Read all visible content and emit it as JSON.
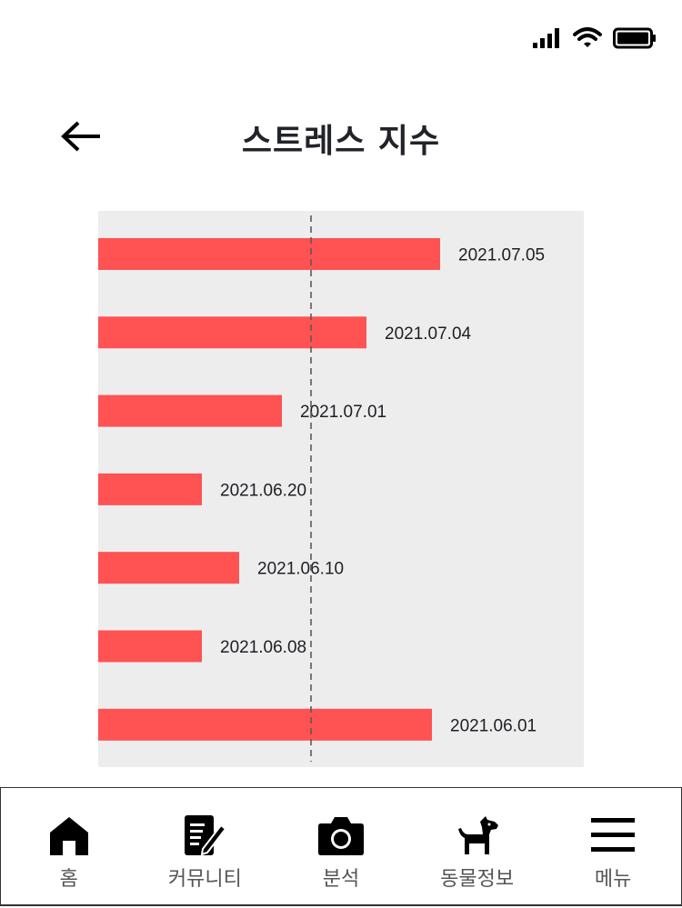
{
  "header": {
    "title": "스트레스 지수"
  },
  "nav": [
    {
      "label": "홈",
      "icon": "home-icon"
    },
    {
      "label": "커뮤니티",
      "icon": "edit-note-icon"
    },
    {
      "label": "분석",
      "icon": "camera-icon"
    },
    {
      "label": "동물정보",
      "icon": "dog-icon"
    },
    {
      "label": "메뉴",
      "icon": "menu-icon"
    }
  ],
  "chart_data": {
    "type": "bar",
    "orientation": "horizontal",
    "categories": [
      "2021.07.05",
      "2021.07.04",
      "2021.07.01",
      "2021.06.20",
      "2021.06.10",
      "2021.06.08",
      "2021.06.01"
    ],
    "values": [
      376,
      295,
      202,
      114,
      155,
      114,
      367
    ],
    "reference_line": 234,
    "xlim": [
      0,
      534
    ],
    "grid": false,
    "bar_color": "#ff5252",
    "background_color": "#ededee"
  }
}
